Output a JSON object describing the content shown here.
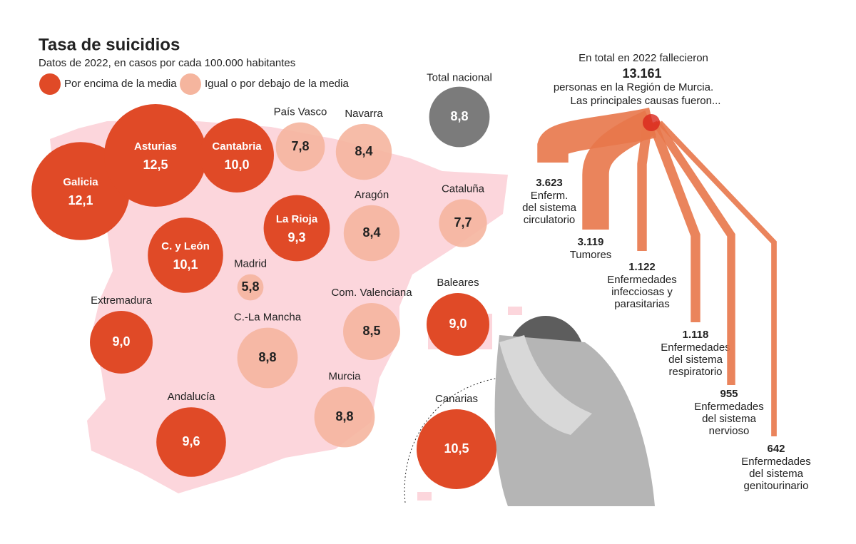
{
  "chart_data": [
    {
      "type": "bubble",
      "title": "Tasa de suicidios",
      "subtitle": "Datos de 2022, en casos por cada 100.000 habitantes",
      "series": [
        {
          "name": "Por encima de la media",
          "color": "#e04a27",
          "categories": [
            "Galicia",
            "Asturias",
            "Cantabria",
            "La Rioja",
            "C. y León",
            "Extremadura",
            "Baleares",
            "Andalucía",
            "Canarias"
          ],
          "values": [
            12.1,
            12.5,
            10.0,
            9.3,
            10.1,
            9.0,
            9.0,
            9.6,
            10.5
          ],
          "value_labels": [
            "12,1",
            "12,5",
            "10,0",
            "9,3",
            "10,1",
            "9,0",
            "9,0",
            "9,6",
            "10,5"
          ]
        },
        {
          "name": "Igual o por debajo de la media",
          "color": "#f5b59e",
          "categories": [
            "País Vasco",
            "Navarra",
            "Aragón",
            "Cataluña",
            "Madrid",
            "C.-La Mancha",
            "Com. Valenciana",
            "Murcia"
          ],
          "values": [
            7.8,
            8.4,
            8.4,
            7.7,
            5.8,
            8.8,
            8.5,
            8.8
          ],
          "value_labels": [
            "7,8",
            "8,4",
            "8,4",
            "7,7",
            "5,8",
            "8,8",
            "8,5",
            "8,8"
          ]
        }
      ],
      "reference": {
        "name": "Total nacional",
        "value": 8.8,
        "value_label": "8,8",
        "color": "#7b7b7b"
      }
    },
    {
      "type": "flow",
      "title": "En total en 2022 fallecieron",
      "total": 13161,
      "total_label": "13.161",
      "notes": [
        "personas en la Región de Murcia.",
        "Las principales causas fueron..."
      ],
      "color": "#e8774a",
      "categories": [
        [
          "Enferm.",
          "del sistema",
          "circulatorio"
        ],
        [
          "Tumores"
        ],
        [
          "Enfermedades",
          "infecciosas y",
          "parasitarias"
        ],
        [
          "Enfermedades",
          "del sistema",
          "respiratorio"
        ],
        [
          "Enfermedades",
          "del sistema",
          "nervioso"
        ],
        [
          "Enfermedades",
          "del sistema",
          "genitourinario"
        ]
      ],
      "values": [
        3623,
        3119,
        1122,
        1118,
        955,
        642
      ],
      "value_labels": [
        "3.623",
        "3.119",
        "1.122",
        "1.118",
        "955",
        "642"
      ]
    }
  ]
}
